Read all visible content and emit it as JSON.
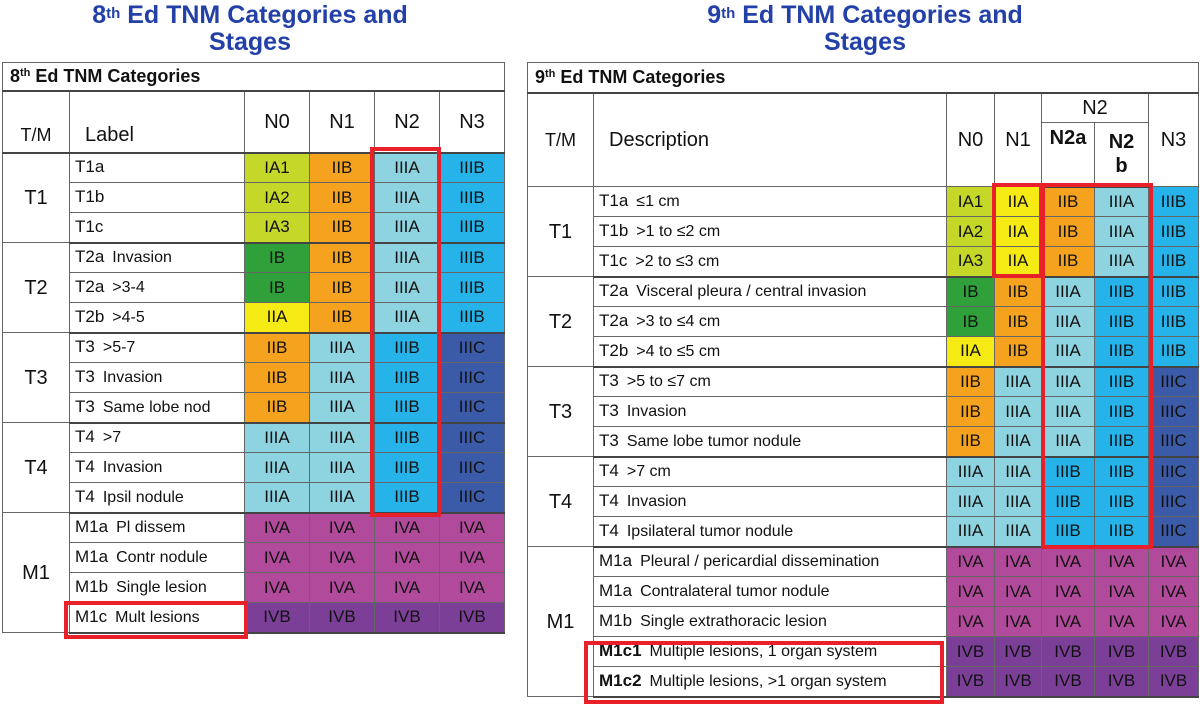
{
  "left": {
    "title_line1_prefix": "8",
    "title_line1_sup": "th",
    "title_line1_rest": " Ed TNM Categories and",
    "title_line2": "Stages",
    "table_title_prefix": "8",
    "table_title_sup": "th",
    "table_title_rest": " Ed TNM Categories",
    "header": {
      "tm": "T/M",
      "label": "Label",
      "n0": "N0",
      "n1": "N1",
      "n2": "N2",
      "n3": "N3"
    },
    "groups": [
      {
        "tm": "T1",
        "rows": [
          {
            "code": "T1a",
            "sub": "",
            "cells": [
              "IA1",
              "IIB",
              "IIIA",
              "IIIB"
            ]
          },
          {
            "code": "T1b",
            "sub": "",
            "cells": [
              "IA2",
              "IIB",
              "IIIA",
              "IIIB"
            ]
          },
          {
            "code": "T1c",
            "sub": "",
            "cells": [
              "IA3",
              "IIB",
              "IIIA",
              "IIIB"
            ]
          }
        ]
      },
      {
        "tm": "T2",
        "rows": [
          {
            "code": "T2a",
            "sub": "Invasion",
            "cells": [
              "IB",
              "IIB",
              "IIIA",
              "IIIB"
            ]
          },
          {
            "code": "T2a",
            "sub": ">3-4",
            "cells": [
              "IB",
              "IIB",
              "IIIA",
              "IIIB"
            ]
          },
          {
            "code": "T2b",
            "sub": ">4-5",
            "cells": [
              "IIA",
              "IIB",
              "IIIA",
              "IIIB"
            ]
          }
        ]
      },
      {
        "tm": "T3",
        "rows": [
          {
            "code": "T3",
            "sub": ">5-7",
            "cells": [
              "IIB",
              "IIIA",
              "IIIB",
              "IIIC"
            ]
          },
          {
            "code": "T3",
            "sub": "Invasion",
            "cells": [
              "IIB",
              "IIIA",
              "IIIB",
              "IIIC"
            ]
          },
          {
            "code": "T3",
            "sub": "Same lobe nod",
            "cells": [
              "IIB",
              "IIIA",
              "IIIB",
              "IIIC"
            ]
          }
        ]
      },
      {
        "tm": "T4",
        "rows": [
          {
            "code": "T4",
            "sub": ">7",
            "cells": [
              "IIIA",
              "IIIA",
              "IIIB",
              "IIIC"
            ]
          },
          {
            "code": "T4",
            "sub": "Invasion",
            "cells": [
              "IIIA",
              "IIIA",
              "IIIB",
              "IIIC"
            ]
          },
          {
            "code": "T4",
            "sub": "Ipsil nodule",
            "cells": [
              "IIIA",
              "IIIA",
              "IIIB",
              "IIIC"
            ]
          }
        ]
      },
      {
        "tm": "M1",
        "rows": [
          {
            "code": "M1a",
            "sub": "Pl dissem",
            "cells": [
              "IVA",
              "IVA",
              "IVA",
              "IVA"
            ]
          },
          {
            "code": "M1a",
            "sub": "Contr nodule",
            "cells": [
              "IVA",
              "IVA",
              "IVA",
              "IVA"
            ]
          },
          {
            "code": "M1b",
            "sub": "Single lesion",
            "cells": [
              "IVA",
              "IVA",
              "IVA",
              "IVA"
            ]
          },
          {
            "code": "M1c",
            "sub": "Mult lesions",
            "cells": [
              "IVB",
              "IVB",
              "IVB",
              "IVB"
            ]
          }
        ]
      }
    ]
  },
  "right": {
    "title_line1_prefix": "9",
    "title_line1_sup": "th",
    "title_line1_rest": " Ed TNM Categories and",
    "title_line2": "Stages",
    "table_title_prefix": "9",
    "table_title_sup": "th",
    "table_title_rest": " Ed TNM Categories",
    "header": {
      "tm": "T/M",
      "description": "Description",
      "n0": "N0",
      "n1": "N1",
      "n2": "N2",
      "n2a": "N2a",
      "n2b_line1": "N2",
      "n2b_line2": "b",
      "n3": "N3"
    },
    "groups": [
      {
        "tm": "T1",
        "rows": [
          {
            "code": "T1a",
            "sub": "≤1 cm",
            "cells": [
              "IA1",
              "IIA",
              "IIB",
              "IIIA",
              "IIIB"
            ]
          },
          {
            "code": "T1b",
            "sub": ">1 to ≤2 cm",
            "cells": [
              "IA2",
              "IIA",
              "IIB",
              "IIIA",
              "IIIB"
            ]
          },
          {
            "code": "T1c",
            "sub": ">2 to ≤3 cm",
            "cells": [
              "IA3",
              "IIA",
              "IIB",
              "IIIA",
              "IIIB"
            ]
          }
        ]
      },
      {
        "tm": "T2",
        "rows": [
          {
            "code": "T2a",
            "sub": "Visceral pleura / central invasion",
            "cells": [
              "IB",
              "IIB",
              "IIIA",
              "IIIB",
              "IIIB"
            ]
          },
          {
            "code": "T2a",
            "sub": ">3 to ≤4 cm",
            "cells": [
              "IB",
              "IIB",
              "IIIA",
              "IIIB",
              "IIIB"
            ]
          },
          {
            "code": "T2b",
            "sub": ">4 to ≤5 cm",
            "cells": [
              "IIA",
              "IIB",
              "IIIA",
              "IIIB",
              "IIIB"
            ]
          }
        ]
      },
      {
        "tm": "T3",
        "rows": [
          {
            "code": "T3",
            "sub": ">5 to ≤7 cm",
            "cells": [
              "IIB",
              "IIIA",
              "IIIA",
              "IIIB",
              "IIIC"
            ]
          },
          {
            "code": "T3",
            "sub": "Invasion",
            "cells": [
              "IIB",
              "IIIA",
              "IIIA",
              "IIIB",
              "IIIC"
            ]
          },
          {
            "code": "T3",
            "sub": "Same lobe tumor nodule",
            "cells": [
              "IIB",
              "IIIA",
              "IIIA",
              "IIIB",
              "IIIC"
            ]
          }
        ]
      },
      {
        "tm": "T4",
        "rows": [
          {
            "code": "T4",
            "sub": ">7 cm",
            "cells": [
              "IIIA",
              "IIIA",
              "IIIB",
              "IIIB",
              "IIIC"
            ]
          },
          {
            "code": "T4",
            "sub": "Invasion",
            "cells": [
              "IIIA",
              "IIIA",
              "IIIB",
              "IIIB",
              "IIIC"
            ]
          },
          {
            "code": "T4",
            "sub": "Ipsilateral tumor nodule",
            "cells": [
              "IIIA",
              "IIIA",
              "IIIB",
              "IIIB",
              "IIIC"
            ]
          }
        ]
      },
      {
        "tm": "M1",
        "rows": [
          {
            "code": "M1a",
            "sub": "Pleural / pericardial dissemination",
            "cells": [
              "IVA",
              "IVA",
              "IVA",
              "IVA",
              "IVA"
            ]
          },
          {
            "code": "M1a",
            "sub": "Contralateral tumor nodule",
            "cells": [
              "IVA",
              "IVA",
              "IVA",
              "IVA",
              "IVA"
            ]
          },
          {
            "code": "M1b",
            "sub": "Single extrathoracic lesion",
            "cells": [
              "IVA",
              "IVA",
              "IVA",
              "IVA",
              "IVA"
            ]
          },
          {
            "code": "M1c1",
            "sub": "Multiple lesions, 1 organ system",
            "bold": true,
            "cells": [
              "IVB",
              "IVB",
              "IVB",
              "IVB",
              "IVB"
            ]
          },
          {
            "code": "M1c2",
            "sub": "Multiple lesions, >1 organ system",
            "bold": true,
            "cells": [
              "IVB",
              "IVB",
              "IVB",
              "IVB",
              "IVB"
            ]
          }
        ]
      }
    ]
  },
  "stage_colors": {
    "IA1": "#c5d82a",
    "IA2": "#c5d82a",
    "IA3": "#c5d82a",
    "IB": "#2fa03a",
    "IIA": "#f5ea14",
    "IIB": "#f5a21e",
    "IIIA": "#8ed3e0",
    "IIIB": "#26b3ea",
    "IIIC": "#3b5aa8",
    "IVA": "#b24a9b",
    "IVB": "#7b3f98"
  },
  "highlight_color": "#e8202a"
}
